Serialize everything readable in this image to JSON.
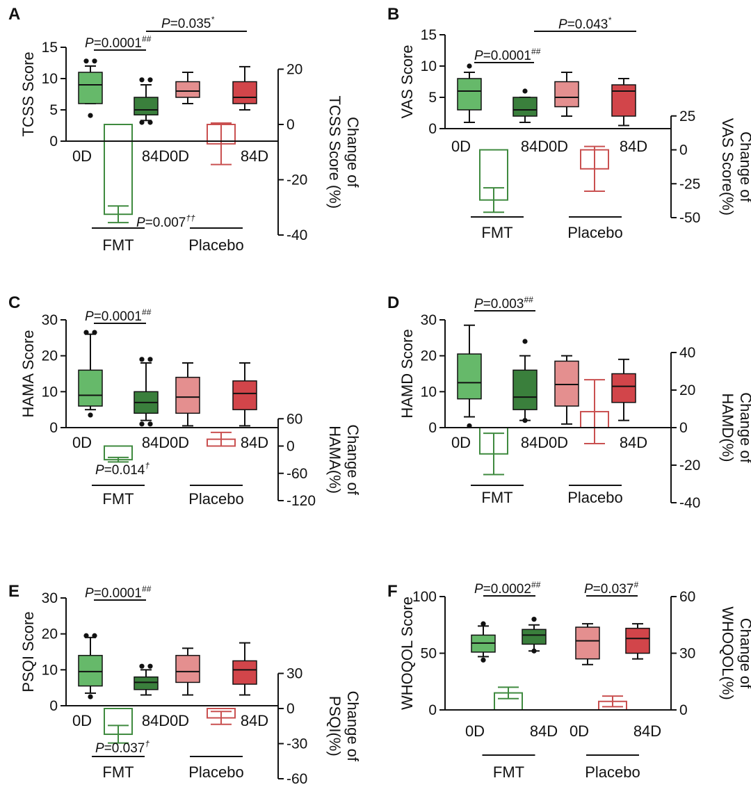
{
  "chart_data": [
    {
      "type": "box",
      "panel": "A",
      "ylabel": "TCSS Score",
      "y2label": [
        "Change of",
        "TCSS Score (%)"
      ],
      "ylim": [
        0,
        15
      ],
      "yticks": [
        0,
        5,
        10,
        15
      ],
      "y2lim": [
        -40,
        40
      ],
      "y2ticks": [
        -40,
        -20,
        0,
        20
      ],
      "categories": [
        "0D",
        "84D",
        "0D",
        "84D"
      ],
      "groups": [
        "FMT",
        "Placebo"
      ],
      "boxes": [
        {
          "group": "FMT",
          "day": "0D",
          "min": 6.0,
          "q1": 6.0,
          "median": 9.0,
          "q3": 11.0,
          "max": 12.0,
          "outliers": [
            4.1,
            12.8,
            12.8
          ]
        },
        {
          "group": "FMT",
          "day": "84D",
          "min": 3.3,
          "q1": 4.2,
          "median": 5.0,
          "q3": 7.0,
          "max": 9.0,
          "outliers": [
            3.0,
            3.0,
            9.8,
            9.8
          ]
        },
        {
          "group": "Placebo",
          "day": "0D",
          "min": 6.0,
          "q1": 7.0,
          "median": 8.0,
          "q3": 9.5,
          "max": 11.0,
          "outliers": []
        },
        {
          "group": "Placebo",
          "day": "84D",
          "min": 5.0,
          "q1": 6.0,
          "median": 7.0,
          "q3": 9.5,
          "max": 11.9,
          "outliers": []
        }
      ],
      "change": [
        {
          "group": "FMT",
          "mean": -32.5,
          "err": 3.0
        },
        {
          "group": "Placebo",
          "mean": -7.0,
          "err": 7.5
        }
      ],
      "annotations": [
        {
          "text": "P=0.0001",
          "sup": "##",
          "span": [
            "0D",
            "84D"
          ],
          "group": "FMT"
        },
        {
          "text": "P=0.035",
          "sup": "*",
          "span": "FMT 84D – Placebo 84D"
        },
        {
          "text": "P=0.007",
          "sup": "††"
        }
      ]
    },
    {
      "type": "box",
      "panel": "B",
      "ylabel": "VAS Score",
      "y2label": [
        "Change of",
        "VAS Score(%)"
      ],
      "ylim": [
        0,
        15
      ],
      "yticks": [
        0,
        5,
        10,
        15
      ],
      "y2lim": [
        -50,
        50
      ],
      "y2ticks": [
        -50,
        -25,
        0,
        25
      ],
      "categories": [
        "0D",
        "84D",
        "0D",
        "84D"
      ],
      "groups": [
        "FMT",
        "Placebo"
      ],
      "boxes": [
        {
          "group": "FMT",
          "day": "0D",
          "min": 1.0,
          "q1": 3.0,
          "median": 6.0,
          "q3": 8.0,
          "max": 9.0,
          "outliers": [
            10.0
          ]
        },
        {
          "group": "FMT",
          "day": "84D",
          "min": 1.0,
          "q1": 2.0,
          "median": 3.0,
          "q3": 5.0,
          "max": 5.0,
          "outliers": [
            6.0
          ]
        },
        {
          "group": "Placebo",
          "day": "0D",
          "min": 2.0,
          "q1": 3.5,
          "median": 5.0,
          "q3": 7.5,
          "max": 9.0,
          "outliers": []
        },
        {
          "group": "Placebo",
          "day": "84D",
          "min": 0.5,
          "q1": 2.0,
          "median": 6.0,
          "q3": 7.0,
          "max": 8.0,
          "outliers": []
        }
      ],
      "change": [
        {
          "group": "FMT",
          "mean": -37.0,
          "err": 9.0
        },
        {
          "group": "Placebo",
          "mean": -14.0,
          "err": 16.5
        }
      ],
      "annotations": [
        {
          "text": "P=0.0001",
          "sup": "##",
          "span": [
            "0D",
            "84D"
          ],
          "group": "FMT"
        },
        {
          "text": "P=0.043",
          "sup": "*",
          "span": "FMT 84D – Placebo 84D"
        }
      ]
    },
    {
      "type": "box",
      "panel": "C",
      "ylabel": "HAMA Score",
      "y2label": [
        "Change of",
        "HAMA(%)"
      ],
      "ylim": [
        0,
        30
      ],
      "yticks": [
        0,
        10,
        20,
        30
      ],
      "y2lim": [
        -120,
        120
      ],
      "y2ticks": [
        -120,
        -60,
        0,
        60
      ],
      "categories": [
        "0D",
        "84D",
        "0D",
        "84D"
      ],
      "groups": [
        "FMT",
        "Placebo"
      ],
      "boxes": [
        {
          "group": "FMT",
          "day": "0D",
          "min": 5.0,
          "q1": 6.0,
          "median": 9.0,
          "q3": 16.0,
          "max": 26.0,
          "outliers": [
            3.5,
            26.5,
            26.5
          ]
        },
        {
          "group": "FMT",
          "day": "84D",
          "min": 2.0,
          "q1": 4.0,
          "median": 7.0,
          "q3": 10.0,
          "max": 18.0,
          "outliers": [
            1.0,
            1.0,
            19.0,
            19.0
          ]
        },
        {
          "group": "Placebo",
          "day": "0D",
          "min": 0.5,
          "q1": 4.0,
          "median": 8.5,
          "q3": 14.0,
          "max": 18.0,
          "outliers": []
        },
        {
          "group": "Placebo",
          "day": "84D",
          "min": 0.5,
          "q1": 5.0,
          "median": 9.5,
          "q3": 13.0,
          "max": 18.0,
          "outliers": []
        }
      ],
      "change": [
        {
          "group": "FMT",
          "mean": -30.0,
          "err": 5.0
        },
        {
          "group": "Placebo",
          "mean": 15.0,
          "err": 15.0
        }
      ],
      "annotations": [
        {
          "text": "P=0.0001",
          "sup": "##",
          "span": [
            "0D",
            "84D"
          ],
          "group": "FMT"
        },
        {
          "text": "P=0.014",
          "sup": "†"
        }
      ]
    },
    {
      "type": "box",
      "panel": "D",
      "ylabel": "HAMD Score",
      "y2label": [
        "Change of",
        "HAMD(%)"
      ],
      "ylim": [
        0,
        30
      ],
      "yticks": [
        0,
        10,
        20,
        30
      ],
      "y2lim": [
        -40,
        40
      ],
      "y2ticks": [
        -40,
        -20,
        0,
        20,
        40
      ],
      "categories": [
        "0D",
        "84D",
        "0D",
        "84D"
      ],
      "groups": [
        "FMT",
        "Placebo"
      ],
      "boxes": [
        {
          "group": "FMT",
          "day": "0D",
          "min": 3.0,
          "q1": 8.0,
          "median": 12.5,
          "q3": 20.5,
          "max": 28.5,
          "outliers": [
            0.5
          ]
        },
        {
          "group": "FMT",
          "day": "84D",
          "min": 2.0,
          "q1": 5.0,
          "median": 8.5,
          "q3": 16.0,
          "max": 20.0,
          "outliers": [
            2.0,
            24.0
          ]
        },
        {
          "group": "Placebo",
          "day": "0D",
          "min": 1.0,
          "q1": 6.0,
          "median": 12.0,
          "q3": 18.5,
          "max": 20.0,
          "outliers": []
        },
        {
          "group": "Placebo",
          "day": "84D",
          "min": 2.0,
          "q1": 7.0,
          "median": 11.5,
          "q3": 15.0,
          "max": 19.0,
          "outliers": []
        }
      ],
      "change": [
        {
          "group": "FMT",
          "mean": -14.0,
          "err": 11.0
        },
        {
          "group": "Placebo",
          "mean": 8.5,
          "err": 17.0
        }
      ],
      "annotations": [
        {
          "text": "P=0.003",
          "sup": "##",
          "span": [
            "0D",
            "84D"
          ],
          "group": "FMT"
        }
      ]
    },
    {
      "type": "box",
      "panel": "E",
      "ylabel": "PSQI Score",
      "y2label": [
        "Change of",
        "PSQI(%)"
      ],
      "ylim": [
        0,
        30
      ],
      "yticks": [
        0,
        10,
        20,
        30
      ],
      "y2lim": [
        -60,
        60
      ],
      "y2ticks": [
        -60,
        -30,
        0,
        30
      ],
      "categories": [
        "0D",
        "84D",
        "0D",
        "84D"
      ],
      "groups": [
        "FMT",
        "Placebo"
      ],
      "boxes": [
        {
          "group": "FMT",
          "day": "0D",
          "min": 3.5,
          "q1": 5.5,
          "median": 9.5,
          "q3": 14.0,
          "max": 19.0,
          "outliers": [
            2.5,
            19.5,
            19.5
          ]
        },
        {
          "group": "FMT",
          "day": "84D",
          "min": 3.0,
          "q1": 4.5,
          "median": 6.5,
          "q3": 8.0,
          "max": 10.0,
          "outliers": [
            11.0,
            11.0
          ]
        },
        {
          "group": "Placebo",
          "day": "0D",
          "min": 3.0,
          "q1": 6.5,
          "median": 9.5,
          "q3": 14.0,
          "max": 16.0,
          "outliers": []
        },
        {
          "group": "Placebo",
          "day": "84D",
          "min": 3.0,
          "q1": 6.0,
          "median": 10.0,
          "q3": 12.5,
          "max": 17.5,
          "outliers": []
        }
      ],
      "change": [
        {
          "group": "FMT",
          "mean": -22.0,
          "err": 7.5
        },
        {
          "group": "Placebo",
          "mean": -8.0,
          "err": 5.5
        }
      ],
      "annotations": [
        {
          "text": "P=0.0001",
          "sup": "##",
          "span": [
            "0D",
            "84D"
          ],
          "group": "FMT"
        },
        {
          "text": "P=0.037",
          "sup": "†"
        }
      ]
    },
    {
      "type": "box",
      "panel": "F",
      "ylabel": "WHOQOL Score",
      "y2label": [
        "Change of",
        "WHOQOL(%)"
      ],
      "ylim": [
        0,
        100
      ],
      "yticks": [
        0,
        50,
        100
      ],
      "y2lim": [
        0,
        60
      ],
      "y2ticks": [
        0,
        30,
        60
      ],
      "categories": [
        "0D",
        "84D",
        "0D",
        "84D"
      ],
      "groups": [
        "FMT",
        "Placebo"
      ],
      "boxes": [
        {
          "group": "FMT",
          "day": "0D",
          "min": 47.0,
          "q1": 51.0,
          "median": 59.0,
          "q3": 66.0,
          "max": 74.0,
          "outliers": [
            44.0,
            76.0
          ]
        },
        {
          "group": "FMT",
          "day": "84D",
          "min": 52.0,
          "q1": 58.0,
          "median": 66.0,
          "q3": 71.0,
          "max": 75.0,
          "outliers": [
            52.0,
            80.0
          ]
        },
        {
          "group": "Placebo",
          "day": "0D",
          "min": 40.0,
          "q1": 45.0,
          "median": 61.0,
          "q3": 73.0,
          "max": 76.0,
          "outliers": []
        },
        {
          "group": "Placebo",
          "day": "84D",
          "min": 45.0,
          "q1": 50.0,
          "median": 63.0,
          "q3": 72.0,
          "max": 76.0,
          "outliers": []
        }
      ],
      "change": [
        {
          "group": "FMT",
          "mean": 9.0,
          "err": 3.0
        },
        {
          "group": "Placebo",
          "mean": 4.5,
          "err": 2.8
        }
      ],
      "annotations": [
        {
          "text": "P=0.0002",
          "sup": "##",
          "span": [
            "0D",
            "84D"
          ],
          "group": "FMT"
        },
        {
          "text": "P=0.037",
          "sup": "#",
          "span": [
            "0D",
            "84D"
          ],
          "group": "Placebo"
        }
      ]
    }
  ],
  "colors": {
    "fmt_0d": "#66b96a",
    "fmt_84d": "#3a7f3c",
    "fmt_line": "#3f8a3f",
    "placebo_0d": "#e48f8f",
    "placebo_84d": "#d2454a",
    "placebo_line": "#c95050",
    "axis": "#111111"
  }
}
